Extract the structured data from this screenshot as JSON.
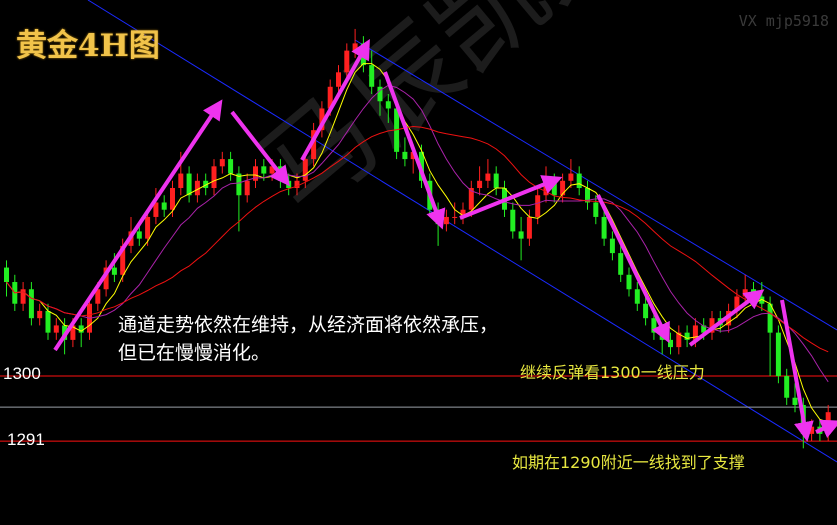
{
  "title": "黄金4H图",
  "contact": "VX mjp5918",
  "watermark": "马辰凯文",
  "annotation_main": [
    "通道走势依然在维持，从经济面将依然承压，",
    "但已在慢慢消化。"
  ],
  "annotation_resistance": "继续反弹看1300一线压力",
  "annotation_support": "如期在1290附近一线找到了支撑",
  "colors": {
    "up": "#ff2020",
    "down": "#22ee22",
    "ma_short": "#ffff00",
    "ma_mid": "#aa22aa",
    "ma_long": "#ee1111",
    "channel": "#1a2aff",
    "arrow": "#ee33ee",
    "level": "#ff1111",
    "current": "#9aa0a8",
    "title": "#f1c34a",
    "annotation": "#e8e840"
  },
  "chart_data": {
    "type": "candlestick",
    "timeframe": "4H",
    "ylim": [
      1279.4,
      1352
    ],
    "levels": [
      {
        "label": "1300",
        "value": 1300
      },
      {
        "label": "1291",
        "value": 1291
      }
    ],
    "current_price_line": 1295.7,
    "moving_averages": [
      "ma_short",
      "ma_mid",
      "ma_long"
    ],
    "candles": [
      [
        1315,
        1316,
        1311,
        1313
      ],
      [
        1313,
        1314,
        1309,
        1310
      ],
      [
        1310,
        1313,
        1309,
        1312
      ],
      [
        1312,
        1313,
        1307,
        1308
      ],
      [
        1308,
        1310,
        1307,
        1309
      ],
      [
        1309,
        1310,
        1305,
        1306
      ],
      [
        1306,
        1308,
        1305,
        1307
      ],
      [
        1307,
        1308,
        1303,
        1305
      ],
      [
        1305,
        1308,
        1304,
        1307
      ],
      [
        1307,
        1308,
        1304,
        1306
      ],
      [
        1306,
        1311,
        1305,
        1310
      ],
      [
        1310,
        1313,
        1309,
        1312
      ],
      [
        1312,
        1316,
        1311,
        1315
      ],
      [
        1315,
        1317,
        1313,
        1314
      ],
      [
        1314,
        1319,
        1313,
        1318
      ],
      [
        1318,
        1322,
        1317,
        1320
      ],
      [
        1320,
        1321,
        1318,
        1319
      ],
      [
        1319,
        1323,
        1318,
        1322
      ],
      [
        1322,
        1326,
        1321,
        1324
      ],
      [
        1324,
        1325,
        1322,
        1323
      ],
      [
        1323,
        1327,
        1322,
        1326
      ],
      [
        1326,
        1331,
        1325,
        1328
      ],
      [
        1328,
        1329,
        1324,
        1325
      ],
      [
        1325,
        1328,
        1324,
        1327
      ],
      [
        1327,
        1328,
        1325,
        1326
      ],
      [
        1326,
        1330,
        1325,
        1329
      ],
      [
        1329,
        1331,
        1328,
        1330
      ],
      [
        1330,
        1331,
        1327,
        1328
      ],
      [
        1328,
        1329,
        1320,
        1325
      ],
      [
        1325,
        1328,
        1324,
        1327
      ],
      [
        1327,
        1330,
        1326,
        1329
      ],
      [
        1329,
        1330,
        1327,
        1328
      ],
      [
        1328,
        1330,
        1327,
        1329
      ],
      [
        1329,
        1330,
        1326,
        1327
      ],
      [
        1327,
        1328,
        1325,
        1326
      ],
      [
        1326,
        1328,
        1325,
        1327
      ],
      [
        1327,
        1331,
        1326,
        1330
      ],
      [
        1330,
        1335,
        1329,
        1334
      ],
      [
        1334,
        1338,
        1333,
        1337
      ],
      [
        1337,
        1341,
        1336,
        1340
      ],
      [
        1340,
        1343,
        1339,
        1342
      ],
      [
        1342,
        1346,
        1341,
        1345
      ],
      [
        1345,
        1348,
        1344,
        1346
      ],
      [
        1346,
        1347,
        1342,
        1343
      ],
      [
        1343,
        1345,
        1339,
        1340
      ],
      [
        1340,
        1341,
        1336,
        1338
      ],
      [
        1338,
        1339,
        1335,
        1337
      ],
      [
        1337,
        1338,
        1330,
        1331
      ],
      [
        1331,
        1333,
        1329,
        1330
      ],
      [
        1330,
        1332,
        1328,
        1331
      ],
      [
        1331,
        1332,
        1326,
        1327
      ],
      [
        1327,
        1328,
        1322,
        1323
      ],
      [
        1323,
        1324,
        1318,
        1321
      ],
      [
        1321,
        1323,
        1320,
        1322
      ],
      [
        1322,
        1324,
        1321,
        1322
      ],
      [
        1322,
        1324,
        1321,
        1323
      ],
      [
        1323,
        1327,
        1322,
        1326
      ],
      [
        1326,
        1329,
        1325,
        1327
      ],
      [
        1327,
        1330,
        1326,
        1328
      ],
      [
        1328,
        1329,
        1325,
        1326
      ],
      [
        1326,
        1327,
        1322,
        1323
      ],
      [
        1323,
        1324,
        1319,
        1320
      ],
      [
        1320,
        1322,
        1316,
        1319
      ],
      [
        1319,
        1323,
        1318,
        1322
      ],
      [
        1322,
        1326,
        1321,
        1325
      ],
      [
        1325,
        1329,
        1324,
        1327
      ],
      [
        1327,
        1328,
        1324,
        1325
      ],
      [
        1325,
        1328,
        1324,
        1327
      ],
      [
        1327,
        1330,
        1326,
        1328
      ],
      [
        1328,
        1329,
        1325,
        1326
      ],
      [
        1326,
        1327,
        1323,
        1324
      ],
      [
        1324,
        1325,
        1321,
        1322
      ],
      [
        1322,
        1323,
        1318,
        1319
      ],
      [
        1319,
        1320,
        1316,
        1317
      ],
      [
        1317,
        1318,
        1313,
        1314
      ],
      [
        1314,
        1315,
        1311,
        1312
      ],
      [
        1312,
        1313,
        1309,
        1310
      ],
      [
        1310,
        1311,
        1307,
        1308
      ],
      [
        1308,
        1309,
        1305,
        1306
      ],
      [
        1306,
        1307,
        1303,
        1305
      ],
      [
        1305,
        1306,
        1303,
        1304
      ],
      [
        1304,
        1307,
        1303,
        1306
      ],
      [
        1306,
        1307,
        1304,
        1305
      ],
      [
        1305,
        1308,
        1304,
        1307
      ],
      [
        1307,
        1308,
        1305,
        1306
      ],
      [
        1306,
        1309,
        1305,
        1308
      ],
      [
        1308,
        1309,
        1306,
        1307
      ],
      [
        1307,
        1310,
        1306,
        1309
      ],
      [
        1309,
        1312,
        1308,
        1311
      ],
      [
        1311,
        1314,
        1310,
        1312
      ],
      [
        1312,
        1313,
        1310,
        1311
      ],
      [
        1311,
        1313,
        1309,
        1310
      ],
      [
        1310,
        1311,
        1300,
        1306
      ],
      [
        1306,
        1307,
        1299,
        1300
      ],
      [
        1300,
        1301,
        1296,
        1297
      ],
      [
        1297,
        1299,
        1295,
        1296
      ],
      [
        1296,
        1297,
        1290,
        1292
      ],
      [
        1292,
        1294,
        1291,
        1293
      ],
      [
        1293,
        1294,
        1291,
        1292
      ],
      [
        1292,
        1296,
        1291,
        1295
      ]
    ]
  }
}
